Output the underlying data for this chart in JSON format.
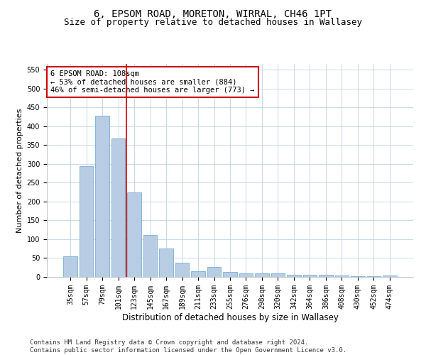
{
  "title": "6, EPSOM ROAD, MORETON, WIRRAL, CH46 1PT",
  "subtitle": "Size of property relative to detached houses in Wallasey",
  "xlabel": "Distribution of detached houses by size in Wallasey",
  "ylabel": "Number of detached properties",
  "categories": [
    "35sqm",
    "57sqm",
    "79sqm",
    "101sqm",
    "123sqm",
    "145sqm",
    "167sqm",
    "189sqm",
    "211sqm",
    "233sqm",
    "255sqm",
    "276sqm",
    "298sqm",
    "320sqm",
    "342sqm",
    "364sqm",
    "386sqm",
    "408sqm",
    "430sqm",
    "452sqm",
    "474sqm"
  ],
  "values": [
    55,
    293,
    428,
    367,
    225,
    112,
    76,
    38,
    16,
    26,
    14,
    9,
    9,
    10,
    6,
    5,
    5,
    4,
    2,
    2,
    4
  ],
  "bar_color": "#b8cce4",
  "bar_edge_color": "#7bafd4",
  "vline_x": 3.5,
  "vline_color": "#cc0000",
  "annotation_text": "6 EPSOM ROAD: 108sqm\n← 53% of detached houses are smaller (884)\n46% of semi-detached houses are larger (773) →",
  "annotation_box_color": "#ffffff",
  "annotation_box_edge_color": "#cc0000",
  "ylim": [
    0,
    565
  ],
  "yticks": [
    0,
    50,
    100,
    150,
    200,
    250,
    300,
    350,
    400,
    450,
    500,
    550
  ],
  "footer": "Contains HM Land Registry data © Crown copyright and database right 2024.\nContains public sector information licensed under the Open Government Licence v3.0.",
  "background_color": "#ffffff",
  "grid_color": "#c8d8e8",
  "title_fontsize": 10,
  "subtitle_fontsize": 9,
  "ylabel_fontsize": 8,
  "xlabel_fontsize": 8.5,
  "tick_fontsize": 7,
  "annotation_fontsize": 7.5,
  "footer_fontsize": 6.5
}
